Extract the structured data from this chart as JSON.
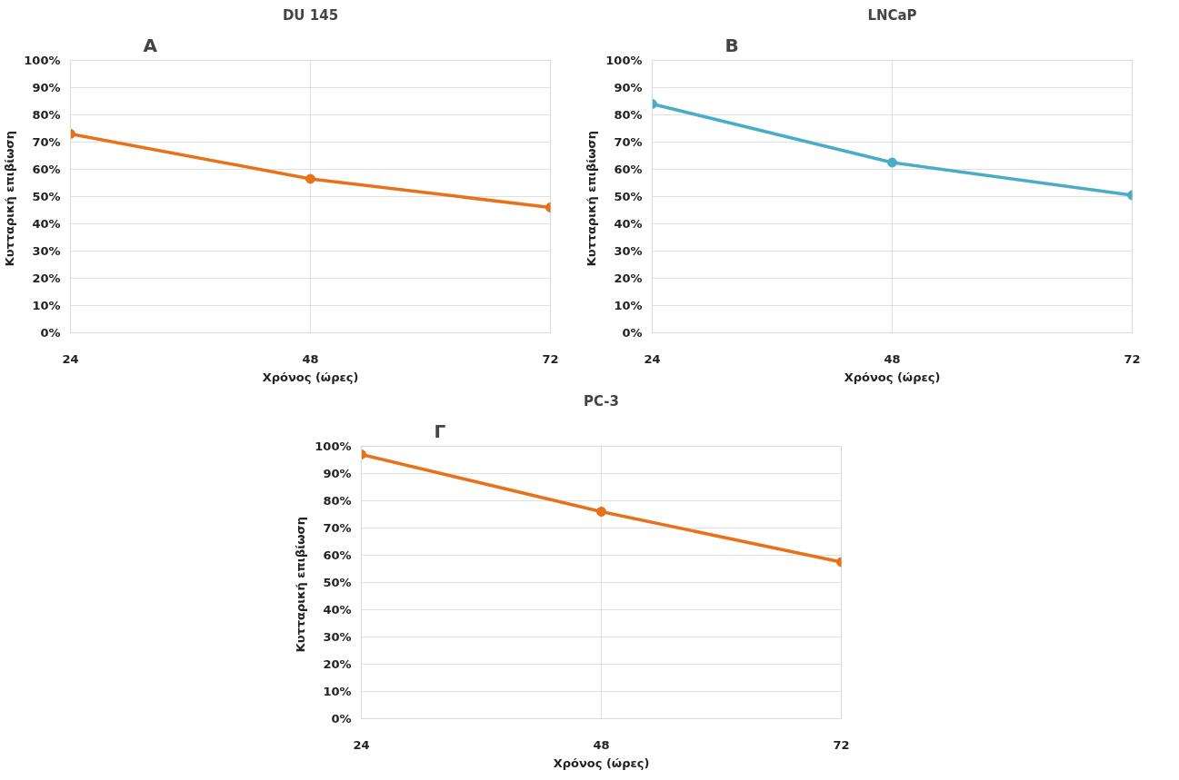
{
  "chart_data": [
    {
      "type": "line",
      "title": "DU 145",
      "annotations": [
        "A"
      ],
      "xlabel": "Χρόνος (ώρες)",
      "ylabel": "Κυτταρική  επιβίωση",
      "x": [
        24,
        48,
        72
      ],
      "series": [
        {
          "color": "#e8711a",
          "values": [
            73,
            56.5,
            46
          ]
        }
      ],
      "xlim": [
        24,
        72
      ],
      "xticks": [
        24,
        48,
        72
      ],
      "ylim": [
        0,
        100
      ],
      "yticks": [
        {
          "value": 0,
          "label": "0%"
        },
        {
          "value": 10,
          "label": "10%"
        },
        {
          "value": 20,
          "label": "20%"
        },
        {
          "value": 30,
          "label": "30%"
        },
        {
          "value": 40,
          "label": "40%"
        },
        {
          "value": 50,
          "label": "50%"
        },
        {
          "value": 60,
          "label": "60%"
        },
        {
          "value": 70,
          "label": "70%"
        },
        {
          "value": 80,
          "label": "80%"
        },
        {
          "value": 90,
          "label": "90%"
        },
        {
          "value": 100,
          "label": "100%"
        }
      ],
      "grid": true,
      "marker": "circle",
      "line_style": "solid"
    },
    {
      "type": "line",
      "title": "LNCaP",
      "annotations": [
        "B"
      ],
      "xlabel": "Χρόνος (ώρες)",
      "ylabel": "Κυτταρική  επιβίωση",
      "x": [
        24,
        48,
        72
      ],
      "series": [
        {
          "color": "#4bacc6",
          "values": [
            84,
            62.5,
            50.5
          ]
        }
      ],
      "xlim": [
        24,
        72
      ],
      "xticks": [
        24,
        48,
        72
      ],
      "ylim": [
        0,
        100
      ],
      "yticks": [
        {
          "value": 0,
          "label": "0%"
        },
        {
          "value": 10,
          "label": "10%"
        },
        {
          "value": 20,
          "label": "20%"
        },
        {
          "value": 30,
          "label": "30%"
        },
        {
          "value": 40,
          "label": "40%"
        },
        {
          "value": 50,
          "label": "50%"
        },
        {
          "value": 60,
          "label": "60%"
        },
        {
          "value": 70,
          "label": "70%"
        },
        {
          "value": 80,
          "label": "80%"
        },
        {
          "value": 90,
          "label": "90%"
        },
        {
          "value": 100,
          "label": "100%"
        }
      ],
      "grid": true,
      "marker": "circle",
      "line_style": "solid"
    },
    {
      "type": "line",
      "title": "PC-3",
      "annotations": [
        "Γ"
      ],
      "xlabel": "Χρόνος (ώρες)",
      "ylabel": "Κυτταρική  επιβίωση",
      "x": [
        24,
        48,
        72
      ],
      "series": [
        {
          "color": "#e8711a",
          "values": [
            97,
            76,
            57.5
          ]
        }
      ],
      "xlim": [
        24,
        72
      ],
      "xticks": [
        24,
        48,
        72
      ],
      "ylim": [
        0,
        100
      ],
      "yticks": [
        {
          "value": 0,
          "label": "0%"
        },
        {
          "value": 10,
          "label": "10%"
        },
        {
          "value": 20,
          "label": "20%"
        },
        {
          "value": 30,
          "label": "30%"
        },
        {
          "value": 40,
          "label": "40%"
        },
        {
          "value": 50,
          "label": "50%"
        },
        {
          "value": 60,
          "label": "60%"
        },
        {
          "value": 70,
          "label": "70%"
        },
        {
          "value": 80,
          "label": "80%"
        },
        {
          "value": 90,
          "label": "90%"
        },
        {
          "value": 100,
          "label": "100%"
        }
      ],
      "grid": true,
      "marker": "circle",
      "line_style": "solid"
    }
  ]
}
